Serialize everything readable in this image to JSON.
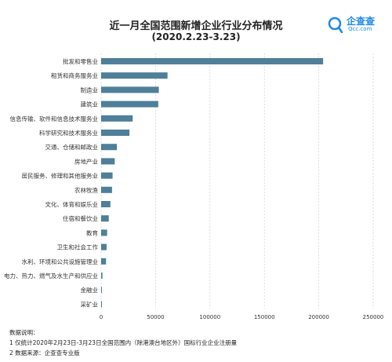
{
  "header": {
    "title": "近一月全国范围新增企业行业分布情况",
    "subtitle": "(2020.2.23-3.23)"
  },
  "logo": {
    "name": "企查查",
    "domain": "Qcc.com",
    "icon": "qcc-logo-icon",
    "color": "#1e88e5"
  },
  "chart_data": {
    "type": "bar",
    "orientation": "horizontal",
    "categories": [
      "批发和零售业",
      "租赁和商务服务业",
      "制造业",
      "建筑业",
      "信息传输、软件和信息技术服务业",
      "科学研究和技术服务业",
      "交通、仓储和邮政业",
      "房地产业",
      "居民服务、修理和其他服务业",
      "农林牧渔",
      "文化、体育和娱乐业",
      "住宿和餐饮业",
      "教育",
      "卫生和社会工作",
      "水利、环境和公共设施管理业",
      "电力、热力、燃气及水生产和供应业",
      "金融业",
      "采矿业"
    ],
    "values": [
      204000,
      61000,
      53000,
      52500,
      29000,
      26000,
      14500,
      12500,
      10500,
      10000,
      8500,
      7000,
      5500,
      5000,
      4500,
      1200,
      500,
      600
    ],
    "xlim": [
      0,
      250000
    ],
    "xticks": [
      "0",
      "50000",
      "100000",
      "150000",
      "200000",
      "250000"
    ],
    "grid": true,
    "bar_color": "#4f7f99",
    "legend": "none"
  },
  "notes": {
    "heading": "数据说明：",
    "lines": [
      "1 仅统计2020年2月23日-3月23日全国范围内（除港澳台地区外）国标行业企业注册量",
      "2 数据来源：企查查专业版"
    ]
  }
}
